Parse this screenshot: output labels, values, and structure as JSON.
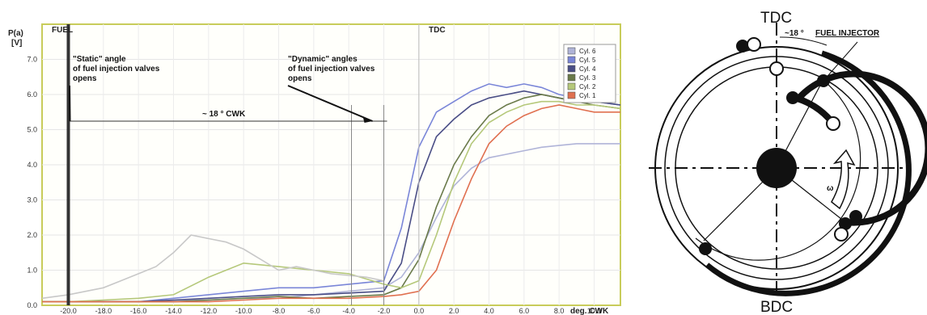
{
  "chart_data": {
    "type": "line",
    "ylabel_line1": "P(a)",
    "ylabel_line2": "[V]",
    "xlabel": "deg. CWK",
    "x_ticks": [
      -20,
      -18,
      -16,
      -14,
      -12,
      -10,
      -8,
      -6,
      -4,
      -2,
      0,
      2,
      4,
      6,
      8,
      10
    ],
    "x_tick_labels": [
      "-20.0",
      "-18.0",
      "-16.0",
      "-14.0",
      "-12.0",
      "-10.0",
      "-8.0",
      "-6.0",
      "-4.0",
      "-2.0",
      "0.0",
      "2.0",
      "4.0",
      "6.0",
      "8.0",
      "10.0"
    ],
    "y_ticks": [
      0,
      1,
      2,
      3,
      4,
      5,
      6,
      7
    ],
    "y_tick_labels": [
      "0.0",
      "1.0",
      "2.0",
      "3.0",
      "4.0",
      "5.0",
      "6.0",
      "7.0"
    ],
    "xlim": [
      -21.5,
      11.5
    ],
    "ylim": [
      0,
      8
    ],
    "grid": true,
    "legend_position": "top-right",
    "series": [
      {
        "name": "Cyl. 6",
        "color": "#b0b4d8",
        "x": [
          -21.5,
          -20,
          -18,
          -16,
          -14,
          -12,
          -10,
          -8,
          -6,
          -4,
          -2,
          -1,
          0,
          1,
          2,
          3,
          4,
          5,
          6,
          7,
          8,
          9,
          10,
          11.5
        ],
        "y": [
          0.1,
          0.1,
          0.1,
          0.1,
          0.15,
          0.15,
          0.2,
          0.2,
          0.3,
          0.4,
          0.5,
          0.8,
          1.5,
          2.5,
          3.4,
          3.9,
          4.2,
          4.3,
          4.4,
          4.5,
          4.55,
          4.6,
          4.6,
          4.6
        ]
      },
      {
        "name": "Cyl. 5",
        "color": "#7a86d8",
        "x": [
          -21.5,
          -20,
          -18,
          -16,
          -14,
          -12,
          -10,
          -8,
          -6,
          -4,
          -2,
          -1,
          0,
          1,
          2,
          3,
          4,
          5,
          6,
          7,
          8,
          9,
          10,
          11.5
        ],
        "y": [
          0.1,
          0.1,
          0.1,
          0.1,
          0.2,
          0.3,
          0.4,
          0.5,
          0.5,
          0.6,
          0.7,
          2.2,
          4.5,
          5.5,
          5.8,
          6.1,
          6.3,
          6.2,
          6.3,
          6.2,
          6.0,
          5.9,
          5.8,
          5.7
        ]
      },
      {
        "name": "Cyl. 4",
        "color": "#4a4e86",
        "x": [
          -21.5,
          -20,
          -18,
          -16,
          -14,
          -12,
          -10,
          -8,
          -6,
          -4,
          -2,
          -1,
          0,
          1,
          2,
          3,
          4,
          5,
          6,
          7,
          8,
          9,
          10,
          11.5
        ],
        "y": [
          0.1,
          0.1,
          0.1,
          0.1,
          0.15,
          0.2,
          0.25,
          0.3,
          0.3,
          0.35,
          0.4,
          1.2,
          3.5,
          4.8,
          5.3,
          5.7,
          5.9,
          6.0,
          6.1,
          6.0,
          5.9,
          5.8,
          5.8,
          5.7
        ]
      },
      {
        "name": "Cyl. 3",
        "color": "#6a7a4a",
        "x": [
          -21.5,
          -20,
          -18,
          -16,
          -14,
          -12,
          -10,
          -8,
          -6,
          -4,
          -2,
          -1,
          0,
          1,
          2,
          3,
          4,
          5,
          6,
          7,
          8,
          9,
          10,
          11.5
        ],
        "y": [
          0.1,
          0.1,
          0.1,
          0.1,
          0.1,
          0.15,
          0.2,
          0.25,
          0.2,
          0.25,
          0.3,
          0.5,
          1.3,
          2.8,
          4.0,
          4.8,
          5.4,
          5.7,
          5.9,
          6.0,
          5.9,
          5.8,
          5.7,
          5.6
        ]
      },
      {
        "name": "Cyl. 2",
        "color": "#b5c87a",
        "x": [
          -21.5,
          -20,
          -18,
          -16,
          -14,
          -12,
          -10,
          -8,
          -6,
          -4,
          -2,
          -1,
          0,
          1,
          2,
          3,
          4,
          5,
          6,
          7,
          8,
          9,
          10,
          11.5
        ],
        "y": [
          0.1,
          0.1,
          0.15,
          0.2,
          0.3,
          0.8,
          1.2,
          1.1,
          1.0,
          0.9,
          0.6,
          0.5,
          0.7,
          2.0,
          3.5,
          4.6,
          5.2,
          5.5,
          5.7,
          5.8,
          5.8,
          5.7,
          5.7,
          5.6
        ]
      },
      {
        "name": "Cyl. 1",
        "color": "#e07050",
        "x": [
          -21.5,
          -20,
          -18,
          -16,
          -14,
          -12,
          -10,
          -8,
          -6,
          -4,
          -2,
          -1,
          0,
          1,
          2,
          3,
          4,
          5,
          6,
          7,
          8,
          9,
          10,
          11.5
        ],
        "y": [
          0.1,
          0.1,
          0.1,
          0.1,
          0.1,
          0.1,
          0.15,
          0.2,
          0.2,
          0.2,
          0.25,
          0.3,
          0.4,
          1.0,
          2.4,
          3.6,
          4.6,
          5.1,
          5.4,
          5.6,
          5.7,
          5.6,
          5.5,
          5.5
        ]
      },
      {
        "name": "",
        "color": "#c8c8c8",
        "x": [
          -21.5,
          -20,
          -18,
          -17,
          -16,
          -15,
          -14,
          -13,
          -12,
          -11,
          -10,
          -9,
          -8,
          -7,
          -6,
          -5,
          -4,
          -3,
          -2
        ],
        "y": [
          0.2,
          0.3,
          0.5,
          0.7,
          0.9,
          1.1,
          1.5,
          2.0,
          1.9,
          1.8,
          1.6,
          1.3,
          1.0,
          1.1,
          1.0,
          0.9,
          0.85,
          0.8,
          0.7
        ]
      }
    ],
    "annotations": {
      "tdc_label": "TDC",
      "fuel_marker_label": "FUEL",
      "static_text": [
        "\"Static\" angle",
        "of fuel injection valves",
        "opens"
      ],
      "dynamic_text": [
        "\"Dynamic\" angles",
        "of fuel injection valves",
        "opens"
      ],
      "span_text": "~ 18 ° CWK",
      "static_angle_x": -20,
      "dynamic_angle_x": -2
    }
  },
  "timing_diagram": {
    "tdc_label": "TDC",
    "bdc_label": "BDC",
    "angle_label": "~18 °",
    "fuel_injector_label": "FUEL INJECTOR",
    "rotation_label": "ω"
  }
}
